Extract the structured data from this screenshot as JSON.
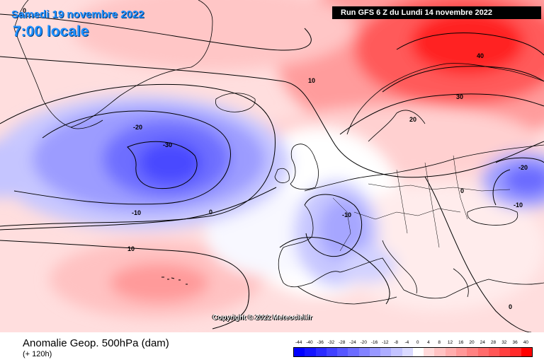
{
  "header": {
    "date": "Samedi 19 novembre 2022",
    "time": "7:00 locale",
    "run": "Run GFS 6 Z du Lundi 14 novembre 2022"
  },
  "footer": {
    "title": "Anomalie Geop. 500hPa (dam)",
    "forecast": "(+ 120h)"
  },
  "copyright": "Copyright © 2022 Meteociel.fr",
  "contour_labels": [
    "0",
    "10",
    "40",
    "30",
    "20",
    "-20",
    "-30",
    "-10",
    "0",
    "-20",
    "-10",
    "0",
    "-10",
    "10",
    "0"
  ],
  "scale": {
    "ticks": [
      "-44",
      "-40",
      "-36",
      "-32",
      "-28",
      "-24",
      "-20",
      "-16",
      "-12",
      "-8",
      "-4",
      "0",
      "4",
      "8",
      "12",
      "16",
      "20",
      "24",
      "28",
      "32",
      "36",
      "40"
    ],
    "colors": [
      "#0000ff",
      "#1414ff",
      "#2a2aff",
      "#4040ff",
      "#5656ff",
      "#6b6bff",
      "#8282ff",
      "#9898ff",
      "#adadff",
      "#c3c3ff",
      "#dadaff",
      "#ffffff",
      "#ffdada",
      "#ffc3c3",
      "#ffadad",
      "#ff9898",
      "#ff8282",
      "#ff6b6b",
      "#ff5656",
      "#ff4040",
      "#ff2a2a",
      "#ff0000"
    ]
  }
}
